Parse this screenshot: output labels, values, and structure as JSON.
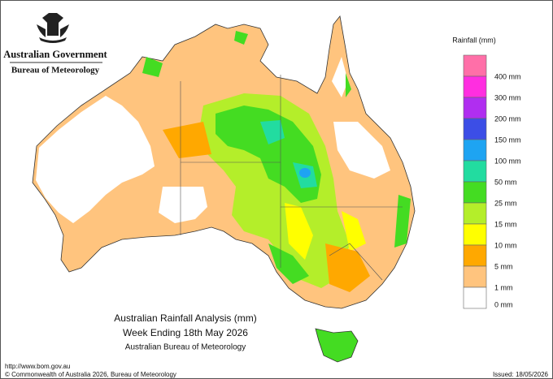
{
  "header": {
    "government": "Australian Government",
    "agency": "Bureau of Meteorology"
  },
  "legend": {
    "title": "Rainfall (mm)",
    "items": [
      {
        "label": "",
        "color": "#ff6fa8"
      },
      {
        "label": "400 mm",
        "color": "#ff2ee0"
      },
      {
        "label": "300 mm",
        "color": "#b02ef0"
      },
      {
        "label": "200 mm",
        "color": "#3c4ee6"
      },
      {
        "label": "150 mm",
        "color": "#1ea4f2"
      },
      {
        "label": "100 mm",
        "color": "#22dca0"
      },
      {
        "label": "50 mm",
        "color": "#44dc22"
      },
      {
        "label": "25 mm",
        "color": "#b4ee2a"
      },
      {
        "label": "15 mm",
        "color": "#ffff00"
      },
      {
        "label": "10 mm",
        "color": "#ffa800"
      },
      {
        "label": "5 mm",
        "color": "#ffc47e"
      },
      {
        "label": "1 mm",
        "color": "#ffffff"
      }
    ],
    "bottom_label": "0 mm"
  },
  "map": {
    "title": "Australian Rainfall Analysis (mm)",
    "subtitle": "Week Ending 18th May 2026",
    "source": "Australian Bureau of Meteorology"
  },
  "footer": {
    "url": "http://www.bom.gov.au",
    "copyright": "© Commonwealth of Australia 2026, Bureau of Meteorology",
    "issued": "Issued: 18/05/2026"
  }
}
